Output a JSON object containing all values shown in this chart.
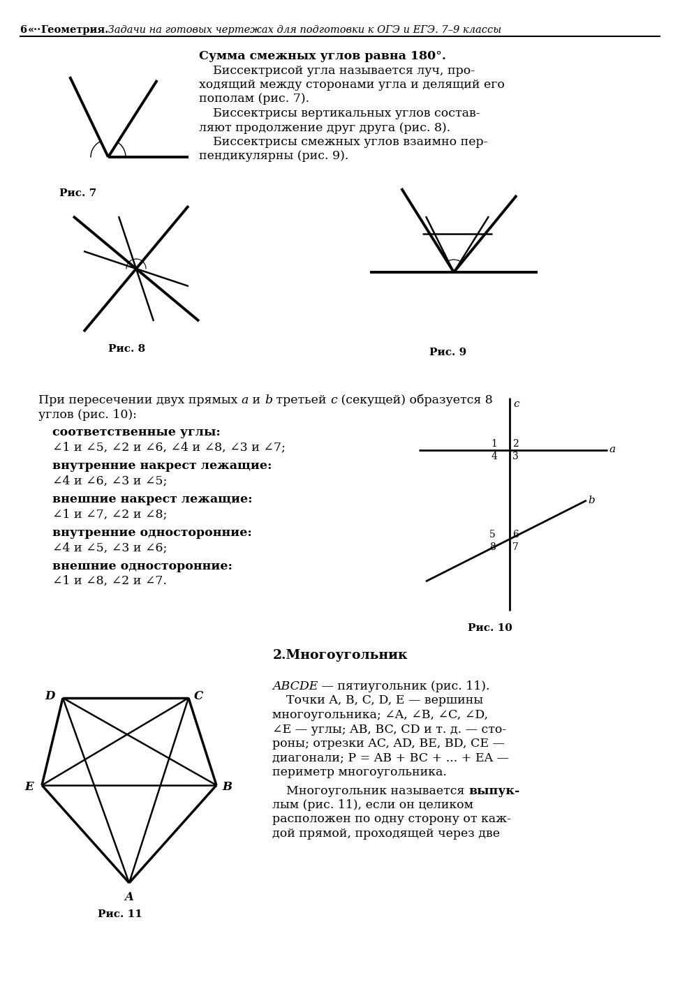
{
  "background": "#ffffff",
  "page_num": "6",
  "fig7_caption": "Рис. 7",
  "fig8_caption": "Рис. 8",
  "fig9_caption": "Рис. 9",
  "fig10_caption": "Рис. 10",
  "fig11_caption": "Рис. 11",
  "section2_title": "2.Многоугольник",
  "header_bold1": "6",
  "header_sym": "«··",
  "header_geo": " Геометрия.",
  "header_rest": " Задачи на готовых чертежах для подготовки к ОГЭ и ЕГЭ. 7–9 классы",
  "t1_bold": "Сумма смежных углов равна 180°.",
  "t1_l2": "Биссектрисой угла называется луч, про-",
  "t1_l3": "ходящий между сторонами угла и делящий его",
  "t1_l4": "пополам (рис. 7).",
  "t1_l5": "Биссектрисы вертикальных углов состав-",
  "t1_l6": "ляют продолжение друг друга (рис. 8).",
  "t1_l7": "Биссектрисы смежных углов взаимно пер-",
  "t1_l8": "пендикулярны (рис. 9).",
  "t2_l1a": "При пересечении двух прямых ",
  "t2_l1b": "a",
  "t2_l1c": " и ",
  "t2_l1d": "b",
  "t2_l1e": " третьей ",
  "t2_l1f": "c",
  "t2_l1g": " (секущей) образуется 8",
  "t2_l2": "углов (рис. 10):",
  "bl1": "соответственные углы:",
  "l1c": "∠1 и ∠5, ∠2 и ∠6, ∠4 и ∠8, ∠3 и ∠7;",
  "bl2": "внутренние накрест лежащие:",
  "l2c": "∠4 и ∠6, ∠3 и ∠5;",
  "bl3": "внешние накрест лежащие:",
  "l3c": "∠1 и ∠7, ∠2 и ∠8;",
  "bl4": "внутренние односторонние:",
  "l4c": "∠4 и ∠5, ∠3 и ∠6;",
  "bl5": "внешние односторонние:",
  "l5c": "∠1 и ∠8, ∠2 и ∠7.",
  "p11_l1i": "ABCDE",
  "p11_l1r": " — пятиугольник (рис. 11).",
  "p11_l2": "Точки ",
  "p11_l2i": "A, B, C, D, E",
  "p11_l2r": " — вершины",
  "p11_l3": "многоугольника; ∠A, ∠B, ∠C, ∠D,",
  "p11_l4": "∠E — углы; ",
  "p11_l4i": "AB, BC, CD",
  "p11_l4r": " и т. д. — сто-",
  "p11_l5": "роны; отрезки ",
  "p11_l5i": "AC, AD, BE, BD, CE",
  "p11_l5r": " —",
  "p11_l6i": "диагонали; ",
  "p11_l6r": "P = AB + BC + ... + EA —",
  "p11_l7": "периметр многоугольника.",
  "p11_l8a": "Многоугольник называется ",
  "p11_l8b": "выпук-",
  "p11_l9": "лым (рис. 11), если он целиком",
  "p11_l10": "расположен по одну сторону от каж-",
  "p11_l11": "дой прямой, проходящей через две"
}
